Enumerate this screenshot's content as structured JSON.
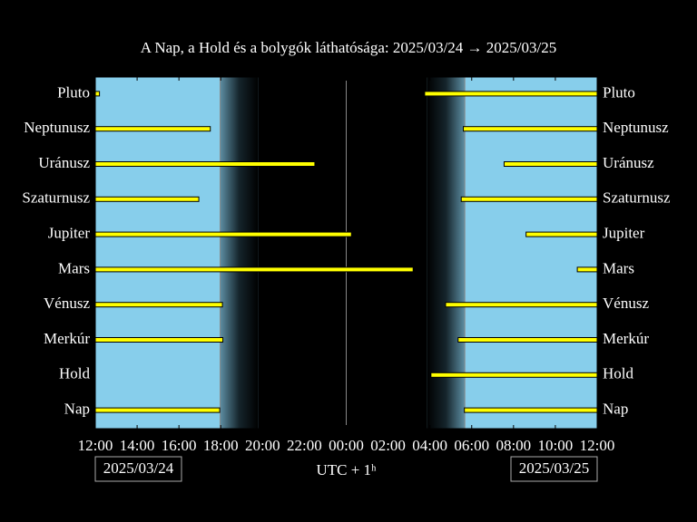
{
  "chart_data": {
    "type": "interval",
    "title": "A Nap, a Hold és a bolygók láthatósága: 2025/03/24 → 2025/03/25",
    "xlabel": "UTC + 1ʰ",
    "start_date": "2025/03/24",
    "end_date": "2025/03/25",
    "xlim": [
      0,
      24
    ],
    "xticks": [
      {
        "value": 0,
        "label": "12:00"
      },
      {
        "value": 2,
        "label": "14:00"
      },
      {
        "value": 4,
        "label": "16:00"
      },
      {
        "value": 6,
        "label": "18:00"
      },
      {
        "value": 8,
        "label": "20:00"
      },
      {
        "value": 10,
        "label": "22:00"
      },
      {
        "value": 12,
        "label": "00:00"
      },
      {
        "value": 14,
        "label": "02:00"
      },
      {
        "value": 16,
        "label": "04:00"
      },
      {
        "value": 18,
        "label": "06:00"
      },
      {
        "value": 20,
        "label": "08:00"
      },
      {
        "value": 22,
        "label": "10:00"
      },
      {
        "value": 24,
        "label": "12:00"
      }
    ],
    "night": {
      "sunset": 5.97,
      "dark": 7.8,
      "dawn": 15.85,
      "sunrise": 17.67,
      "midnight": 12
    },
    "day_color": "#87ceeb",
    "bar_color": "#ffff00",
    "series": [
      {
        "name": "Pluto",
        "values": [
          [
            0,
            0.2
          ],
          [
            15.75,
            24
          ]
        ]
      },
      {
        "name": "Neptunusz",
        "values": [
          [
            0,
            5.5
          ],
          [
            17.6,
            24
          ]
        ]
      },
      {
        "name": "Uránusz",
        "values": [
          [
            0,
            10.5
          ],
          [
            19.55,
            24
          ]
        ]
      },
      {
        "name": "Szaturnusz",
        "values": [
          [
            0,
            4.95
          ],
          [
            17.5,
            24
          ]
        ]
      },
      {
        "name": "Jupiter",
        "values": [
          [
            0,
            12.25
          ],
          [
            20.6,
            24
          ]
        ]
      },
      {
        "name": "Mars",
        "values": [
          [
            0,
            15.2
          ],
          [
            23.05,
            24
          ]
        ]
      },
      {
        "name": "Vénusz",
        "values": [
          [
            0,
            6.08
          ],
          [
            16.75,
            24
          ]
        ]
      },
      {
        "name": "Merkúr",
        "values": [
          [
            0,
            6.1
          ],
          [
            17.35,
            24
          ]
        ]
      },
      {
        "name": "Hold",
        "values": [
          [
            16.05,
            24
          ]
        ]
      },
      {
        "name": "Nap",
        "values": [
          [
            0,
            5.95
          ],
          [
            17.65,
            24
          ]
        ]
      }
    ]
  }
}
